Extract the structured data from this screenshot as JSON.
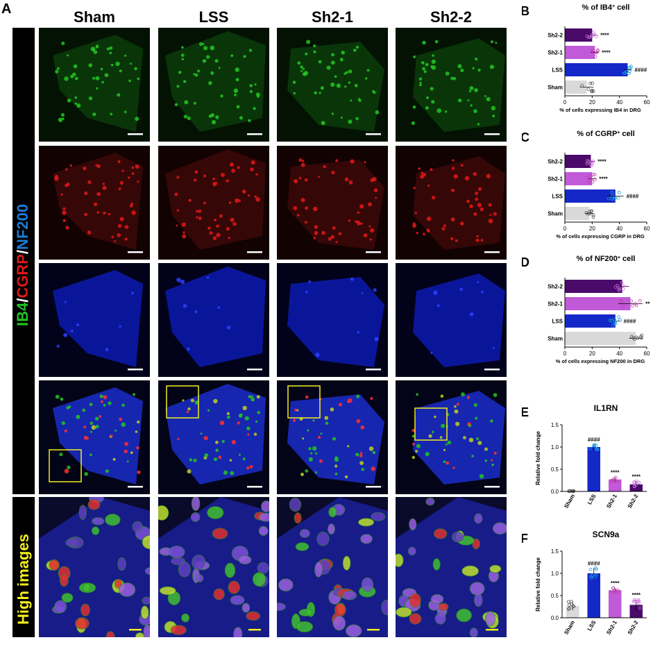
{
  "panel_labels": {
    "A": "A",
    "B": "B",
    "C": "C",
    "D": "D",
    "E": "E",
    "F": "F"
  },
  "columns": [
    "Sham",
    "LSS",
    "Sh2-1",
    "Sh2-2"
  ],
  "row_label": {
    "ib4": "IB4",
    "slash1": "/",
    "cgrp": "CGRP",
    "slash2": "/",
    "nf200": "NF200"
  },
  "high_label": "High images",
  "colors": {
    "green": "#22c522",
    "red": "#e01818",
    "blue": "#1530d8",
    "yellow": "#f2ee1c",
    "sham": "#d9d9d9",
    "lss": "#1428c8",
    "sh21": "#c05ad8",
    "sh22": "#4a0a6a"
  },
  "chart_data": [
    {
      "id": "B",
      "type": "bar",
      "orientation": "horizontal",
      "title_pre": "% of IB4",
      "title_sup": "+",
      "title_post": " cell",
      "categories": [
        "Sh2-2",
        "Sh2-1",
        "LSS",
        "Sham"
      ],
      "values": [
        20,
        22,
        46,
        16
      ],
      "err": [
        4,
        3,
        3,
        5
      ],
      "annotations": [
        "****",
        "****",
        "####",
        ""
      ],
      "xlabel": "% of cells expressing IB4 in DRG",
      "xlim": [
        0,
        60
      ],
      "ticks": [
        "0",
        "20",
        "40",
        "60"
      ]
    },
    {
      "id": "C",
      "type": "bar",
      "orientation": "horizontal",
      "title_pre": "% of CGRP",
      "title_sup": "+",
      "title_post": " cell",
      "categories": [
        "Sh2-2",
        "Sh2-1",
        "LSS",
        "Sham"
      ],
      "values": [
        19,
        20,
        37,
        18
      ],
      "err": [
        3,
        3,
        6,
        3
      ],
      "annotations": [
        "****",
        "****",
        "####",
        ""
      ],
      "xlabel": "% of cells expressing CGRP in DRG",
      "xlim": [
        0,
        60
      ],
      "ticks": [
        "0",
        "20",
        "40",
        "60"
      ]
    },
    {
      "id": "D",
      "type": "bar",
      "orientation": "horizontal",
      "title_pre": "% of NF200",
      "title_sup": "+",
      "title_post": " cell",
      "categories": [
        "Sh2-2",
        "Sh2-1",
        "LSS",
        "Sham"
      ],
      "values": [
        42,
        48,
        37,
        52
      ],
      "err": [
        5,
        9,
        4,
        5
      ],
      "annotations": [
        "",
        "**",
        "####",
        ""
      ],
      "xlabel": "% of cells expressing NF200 in DRG",
      "xlim": [
        0,
        60
      ],
      "ticks": [
        "0",
        "20",
        "40",
        "60"
      ]
    },
    {
      "id": "E",
      "type": "bar",
      "orientation": "vertical",
      "title": "IL1RN",
      "categories": [
        "Sham",
        "LSS",
        "Sh2-1",
        "Sh2-2"
      ],
      "values": [
        0.01,
        1.0,
        0.27,
        0.16
      ],
      "err": [
        0.01,
        0.06,
        0.05,
        0.07
      ],
      "annotations": [
        "",
        "####",
        "****",
        "****"
      ],
      "ylabel": "Relative fold change",
      "ylim": [
        0,
        1.5
      ],
      "ticks": [
        "0.0",
        "0.5",
        "1.0",
        "1.5"
      ]
    },
    {
      "id": "F",
      "type": "bar",
      "orientation": "vertical",
      "title": "SCN9a",
      "categories": [
        "Sham",
        "LSS",
        "Sh2-1",
        "Sh2-2"
      ],
      "values": [
        0.27,
        1.0,
        0.62,
        0.29
      ],
      "err": [
        0.1,
        0.12,
        0.05,
        0.12
      ],
      "annotations": [
        "",
        "####",
        "****",
        "****"
      ],
      "ylabel": "Relative fold change",
      "ylim": [
        0,
        1.5
      ],
      "ticks": [
        "0.0",
        "0.5",
        "1.0",
        "1.5"
      ]
    }
  ]
}
